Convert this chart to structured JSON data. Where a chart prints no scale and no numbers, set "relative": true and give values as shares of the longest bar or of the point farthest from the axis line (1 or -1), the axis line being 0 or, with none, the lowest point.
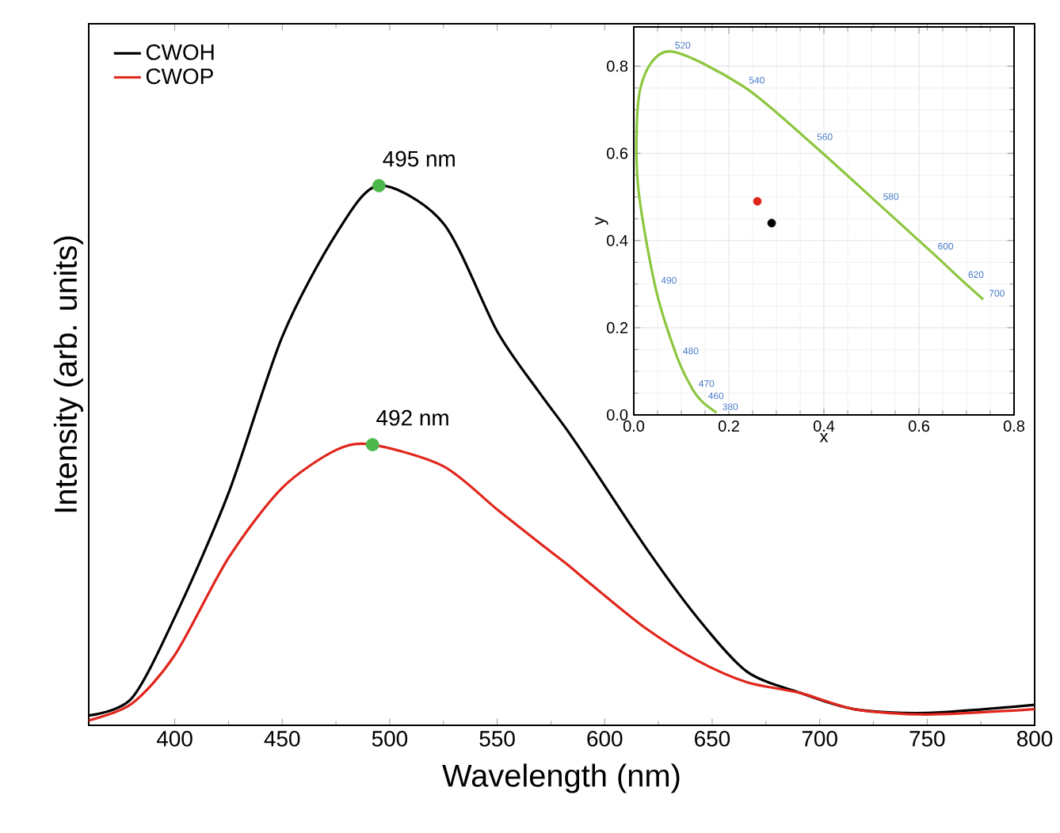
{
  "chart_data": [
    {
      "type": "line",
      "xlabel": "Wavelength (nm)",
      "ylabel": "Intensity (arb. units)",
      "relative": true,
      "xlim": [
        360,
        800
      ],
      "xticks": [
        400,
        450,
        500,
        550,
        600,
        650,
        700,
        750,
        800
      ],
      "legend": "top left",
      "annotations": [
        {
          "text": "495 nm",
          "x": 495,
          "y": 1.0
        },
        {
          "text": "492 nm",
          "x": 492,
          "y": 0.52
        }
      ],
      "series": [
        {
          "name": "CWOH",
          "color": "#000000",
          "x": [
            360,
            380,
            400,
            425,
            450,
            475,
            495,
            525,
            550,
            569,
            582,
            594,
            619,
            643,
            666,
            691,
            716,
            750,
            800
          ],
          "values": [
            0.018,
            0.05,
            0.2,
            0.43,
            0.72,
            0.91,
            1.0,
            0.93,
            0.73,
            0.62,
            0.55,
            0.48,
            0.33,
            0.2,
            0.1,
            0.06,
            0.03,
            0.023,
            0.038
          ]
        },
        {
          "name": "CWOP",
          "color": "#e0261c",
          "x": [
            360,
            380,
            400,
            425,
            450,
            475,
            492,
            525,
            550,
            569,
            582,
            594,
            619,
            643,
            666,
            691,
            716,
            750,
            800
          ],
          "values": [
            0.009,
            0.04,
            0.13,
            0.31,
            0.44,
            0.51,
            0.52,
            0.48,
            0.4,
            0.34,
            0.3,
            0.26,
            0.18,
            0.12,
            0.08,
            0.06,
            0.03,
            0.02,
            0.03
          ]
        },
        {
          "type": "scatter",
          "color": "#4cb84c",
          "x": [
            495,
            492
          ],
          "values": [
            1.0,
            0.52
          ]
        }
      ]
    },
    {
      "type": "scatter",
      "xlabel": "x",
      "ylabel": "y",
      "xlim": [
        0,
        0.8
      ],
      "ylim": [
        0,
        0.89
      ],
      "xticks": [
        {
          "value": 0,
          "label": "0.0"
        },
        0.2,
        0.4,
        0.6,
        0.8
      ],
      "yticks": [
        {
          "value": 0,
          "label": "0.0"
        },
        0.2,
        0.4,
        0.6,
        0.8
      ],
      "grid": true,
      "annotations": [
        {
          "text": "520",
          "x": 0.074,
          "y": 0.834
        },
        {
          "text": "540",
          "x": 0.23,
          "y": 0.754
        },
        {
          "text": "560",
          "x": 0.373,
          "y": 0.624
        },
        {
          "text": "580",
          "x": 0.512,
          "y": 0.487
        },
        {
          "text": "600",
          "x": 0.627,
          "y": 0.373
        },
        {
          "text": "620",
          "x": 0.691,
          "y": 0.308
        },
        {
          "text": "700",
          "x": 0.735,
          "y": 0.265
        },
        {
          "text": "490",
          "x": 0.045,
          "y": 0.295
        },
        {
          "text": "480",
          "x": 0.091,
          "y": 0.133
        },
        {
          "text": "470",
          "x": 0.124,
          "y": 0.058
        },
        {
          "text": "460",
          "x": 0.144,
          "y": 0.03
        },
        {
          "text": "380",
          "x": 0.174,
          "y": 0.005
        }
      ],
      "series": [
        {
          "type": "line",
          "color": "#8cc63f",
          "x": [
            0.174,
            0.144,
            0.124,
            0.091,
            0.045,
            0.008,
            0.014,
            0.074,
            0.23,
            0.373,
            0.512,
            0.627,
            0.691,
            0.735
          ],
          "values": [
            0.005,
            0.03,
            0.058,
            0.133,
            0.295,
            0.538,
            0.75,
            0.834,
            0.754,
            0.624,
            0.487,
            0.373,
            0.308,
            0.265
          ]
        },
        {
          "color": "#e0261c",
          "x": [
            0.26
          ],
          "values": [
            0.49
          ]
        },
        {
          "color": "#000000",
          "x": [
            0.29
          ],
          "values": [
            0.44
          ]
        }
      ]
    }
  ]
}
